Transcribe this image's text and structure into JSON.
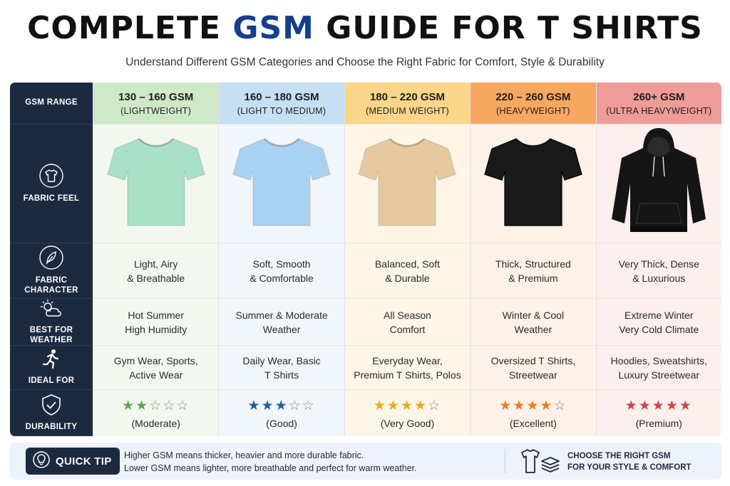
{
  "title": {
    "part1": "COMPLETE ",
    "accent": "GSM",
    "part2": " GUIDE FOR T SHIRTS"
  },
  "subtitle": "Understand Different GSM Categories and Choose the Right Fabric for Comfort, Style & Durability",
  "row_labels": {
    "gsm_range": "GSM RANGE",
    "fabric_feel": "FABRIC FEEL",
    "fabric_character": [
      "FABRIC",
      "CHARACTER"
    ],
    "best_for_weather": [
      "BEST FOR",
      "WEATHER"
    ],
    "ideal_for": "IDEAL FOR",
    "durability": "DURABILITY"
  },
  "columns": [
    {
      "range": "130 – 160 GSM",
      "category": "(LIGHTWEIGHT)",
      "header_color": "#cfe9c8",
      "body_color": "#f2f8ef",
      "garment_color": "#a8e0c8",
      "garment_icon": "tshirt-icon",
      "character": [
        "Light, Airy",
        "& Breathable"
      ],
      "weather": [
        "Hot Summer",
        "High Humidity"
      ],
      "ideal": [
        "Gym Wear, Sports,",
        "Active Wear"
      ],
      "stars_filled": 2,
      "star_color": "#5aa845",
      "rating": "(Moderate)"
    },
    {
      "range": "160 – 180 GSM",
      "category": "(LIGHT TO MEDIUM)",
      "header_color": "#c5dff3",
      "body_color": "#f1f6fb",
      "garment_color": "#a9d2f2",
      "garment_icon": "tshirt-icon",
      "character": [
        "Soft, Smooth",
        "& Comfortable"
      ],
      "weather": [
        "Summer & Moderate",
        "Weather"
      ],
      "ideal": [
        "Daily Wear, Basic",
        "T Shirts"
      ],
      "stars_filled": 3,
      "star_color": "#1f5fa8",
      "rating": "(Good)"
    },
    {
      "range": "180 – 220 GSM",
      "category": "(MEDIUM WEIGHT)",
      "header_color": "#fbd58a",
      "body_color": "#fdf6e6",
      "garment_color": "#e6c9a0",
      "garment_icon": "tshirt-icon",
      "character": [
        "Balanced, Soft",
        "& Durable"
      ],
      "weather": [
        "All Season",
        "Comfort"
      ],
      "ideal": [
        "Everyday Wear,",
        "Premium T Shirts, Polos"
      ],
      "stars_filled": 4,
      "star_color": "#f2a61c",
      "rating": "(Very Good)"
    },
    {
      "range": "220 – 260 GSM",
      "category": "(HEAVYWEIGHT)",
      "header_color": "#f7a760",
      "body_color": "#fdf1e8",
      "garment_color": "#1a1a1a",
      "garment_icon": "tshirt-icon",
      "character": [
        "Thick, Structured",
        "& Premium"
      ],
      "weather": [
        "Winter & Cool",
        "Weather"
      ],
      "ideal": [
        "Oversized T Shirts,",
        "Streetwear"
      ],
      "stars_filled": 4,
      "star_color": "#ef7b1e",
      "rating": "(Excellent)"
    },
    {
      "range": "260+ GSM",
      "category": "(ULTRA HEAVYWEIGHT)",
      "header_color": "#ef9c98",
      "body_color": "#fcefee",
      "garment_color": "#151515",
      "garment_icon": "hoodie-icon",
      "character": [
        "Very Thick, Dense",
        "& Luxurious"
      ],
      "weather": [
        "Extreme Winter",
        "Very Cold Climate"
      ],
      "ideal": [
        "Hoodies, Sweatshirts,",
        "Luxury Streetwear"
      ],
      "stars_filled": 5,
      "star_color": "#d04545",
      "rating": "(Premium)"
    }
  ],
  "tip": {
    "badge": "QUICK TIP",
    "lines": [
      "Higher GSM means thicker, heavier and more durable fabric.",
      "Lower GSM means lighter, more breathable and perfect for warm weather."
    ],
    "cta": [
      "CHOOSE THE RIGHT GSM",
      "FOR YOUR STYLE & COMFORT"
    ]
  },
  "colors": {
    "navy": "#1c2a3f",
    "title_accent": "#143f8c"
  }
}
